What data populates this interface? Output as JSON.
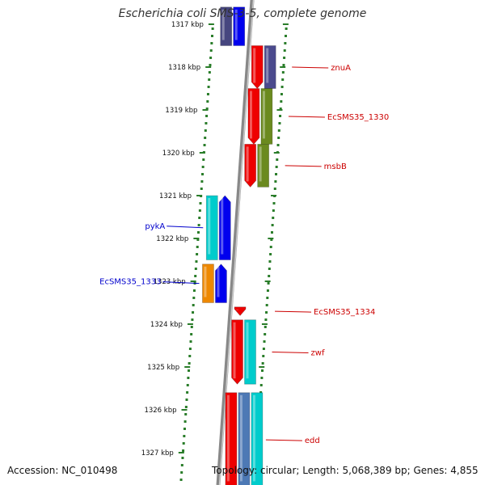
{
  "title": "Escherichia coli SMS-3-5, complete genome",
  "accession_text": "Accession: NC_010498",
  "summary_text": "Topology: circular; Length: 5,068,389 bp; Genes: 4,855",
  "colors": {
    "axis": "#999999",
    "tick": "#2a7d2a",
    "label_forward": "#cc0000",
    "label_reverse": "#0000cc"
  },
  "ticks": [
    "1317 kbp",
    "1318 kbp",
    "1319 kbp",
    "1320 kbp",
    "1321 kbp",
    "1322 kbp",
    "1323 kbp",
    "1324 kbp",
    "1325 kbp",
    "1326 kbp",
    "1327 kbp"
  ],
  "genes": [
    {
      "label": "",
      "strand": "reverse",
      "start_kbp": 1316.6,
      "end_kbp": 1317.5,
      "colors": [
        "#46467f",
        "#0000ee"
      ],
      "arrow": "none"
    },
    {
      "label": "znuA",
      "strand": "forward",
      "start_kbp": 1317.5,
      "end_kbp": 1318.5,
      "colors": [
        "#ee0000",
        "#4b4a8d"
      ],
      "arrow": "down"
    },
    {
      "label": "EcSMS35_1330",
      "strand": "forward",
      "start_kbp": 1318.5,
      "end_kbp": 1319.8,
      "colors": [
        "#ee0000",
        "#6b8a1f"
      ],
      "arrow": "down"
    },
    {
      "label": "msbB",
      "strand": "forward",
      "start_kbp": 1319.8,
      "end_kbp": 1320.8,
      "colors": [
        "#ee0000",
        "#6b8a1f"
      ],
      "arrow": "down"
    },
    {
      "label": "pykA",
      "strand": "reverse",
      "start_kbp": 1321.0,
      "end_kbp": 1322.5,
      "colors": [
        "#00cccc",
        "#0000ee"
      ],
      "arrow": "up"
    },
    {
      "label": "EcSMS35_1333",
      "strand": "reverse",
      "start_kbp": 1322.6,
      "end_kbp": 1323.5,
      "colors": [
        "#ee8800",
        "#0000ee"
      ],
      "arrow": "up"
    },
    {
      "label": "EcSMS35_1334",
      "strand": "forward",
      "start_kbp": 1323.6,
      "end_kbp": 1323.8,
      "colors": [
        "#ee0000"
      ],
      "arrow": "down"
    },
    {
      "label": "zwf",
      "strand": "forward",
      "start_kbp": 1323.9,
      "end_kbp": 1325.4,
      "colors": [
        "#ee0000",
        "#00cccc"
      ],
      "arrow": "down"
    },
    {
      "label": "edd",
      "strand": "forward",
      "start_kbp": 1325.6,
      "end_kbp": 1327.8,
      "colors": [
        "#ee0000",
        "#4d79b5",
        "#00cccc"
      ],
      "arrow": "none"
    }
  ]
}
